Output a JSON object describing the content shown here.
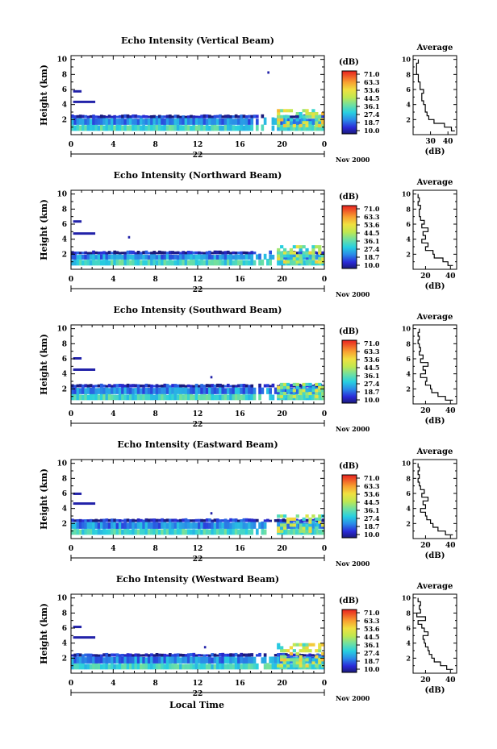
{
  "figure": {
    "bottom_label": "Local Time",
    "colors": {
      "axis": "#000000",
      "background": "#ffffff"
    }
  },
  "chart_data": [
    {
      "type": "heatmap",
      "title": "Echo Intensity (Vertical Beam)",
      "ylabel": "Height (km)",
      "xlim": [
        0,
        24
      ],
      "ylim": [
        0,
        10.5
      ],
      "xticks": [
        "0",
        "4",
        "8",
        "12",
        "16",
        "20",
        "0"
      ],
      "yticks": [
        "2",
        "4",
        "6",
        "8",
        "10"
      ],
      "day_label": "22",
      "month_label": "Nov 2000",
      "colorbar": {
        "unit": "(dB)",
        "ticks": [
          "71.0",
          "63.3",
          "53.6",
          "44.5",
          "36.1",
          "27.4",
          "18.7",
          "10.0"
        ]
      },
      "layers": [
        {
          "x0": 0,
          "x1": 24,
          "y0": 0.5,
          "y1": 1.3,
          "db": 28
        },
        {
          "x0": 0,
          "x1": 24,
          "y0": 1.3,
          "y1": 2.2,
          "db": 20
        },
        {
          "x0": 0,
          "x1": 24,
          "y0": 2.2,
          "y1": 2.6,
          "db": 13
        }
      ],
      "features": [
        {
          "x0": 0.2,
          "x1": 1.0,
          "y": 5.7,
          "db": 12
        },
        {
          "x0": 0.2,
          "x1": 2.3,
          "y": 4.3,
          "db": 12
        },
        {
          "x0": 18.6,
          "x1": 18.8,
          "y": 8.2,
          "db": 12
        },
        {
          "x0": 19.5,
          "x1": 24,
          "y0": 1.0,
          "y1": 3.2,
          "db": 40
        }
      ],
      "profile": {
        "title": "Average",
        "xlabel": "(dB)",
        "xlim": [
          20,
          45
        ],
        "xticks": [
          30,
          40
        ],
        "heights": [
          0.5,
          1.0,
          1.5,
          2.0,
          2.5,
          3.0,
          3.5,
          4.0,
          4.5,
          5.0,
          5.5,
          6.0,
          6.5,
          7.0,
          7.5,
          8.0,
          8.5,
          9.0,
          9.5,
          10.0
        ],
        "values": [
          44,
          42,
          38,
          32,
          29,
          28,
          27,
          27,
          26,
          25,
          25,
          26,
          24,
          24,
          23,
          23,
          22,
          22,
          22,
          23
        ]
      }
    },
    {
      "type": "heatmap",
      "title": "Echo Intensity (Northward Beam)",
      "ylabel": "Height (km)",
      "xlim": [
        0,
        24
      ],
      "ylim": [
        0,
        10.5
      ],
      "xticks": [
        "0",
        "4",
        "8",
        "12",
        "16",
        "20",
        "0"
      ],
      "yticks": [
        "2",
        "4",
        "6",
        "8",
        "10"
      ],
      "day_label": "22",
      "month_label": "Nov 2000",
      "colorbar": {
        "unit": "(dB)",
        "ticks": [
          "71.0",
          "63.3",
          "53.6",
          "44.5",
          "36.1",
          "27.4",
          "18.7",
          "10.0"
        ]
      },
      "layers": [
        {
          "x0": 0,
          "x1": 24,
          "y0": 0.5,
          "y1": 1.3,
          "db": 28
        },
        {
          "x0": 0,
          "x1": 24,
          "y0": 1.3,
          "y1": 2.0,
          "db": 20
        },
        {
          "x0": 0,
          "x1": 24,
          "y0": 2.0,
          "y1": 2.4,
          "db": 13
        }
      ],
      "features": [
        {
          "x0": 0.2,
          "x1": 1.0,
          "y": 6.3,
          "db": 12
        },
        {
          "x0": 0.2,
          "x1": 2.3,
          "y": 4.7,
          "db": 12
        },
        {
          "x0": 5.4,
          "x1": 5.6,
          "y": 4.2,
          "db": 12
        },
        {
          "x0": 19.5,
          "x1": 24,
          "y0": 0.8,
          "y1": 2.9,
          "db": 38
        }
      ],
      "profile": {
        "title": "Average",
        "xlabel": "(dB)",
        "xlim": [
          10,
          45
        ],
        "xticks": [
          20,
          40
        ],
        "heights": [
          0.5,
          1.0,
          1.5,
          2.0,
          2.5,
          3.0,
          3.5,
          4.0,
          4.5,
          5.0,
          5.5,
          6.0,
          6.5,
          7.0,
          7.5,
          8.0,
          8.5,
          9.0,
          9.5,
          10.0
        ],
        "values": [
          42,
          38,
          34,
          27,
          26,
          20,
          22,
          17,
          20,
          18,
          22,
          17,
          19,
          16,
          15,
          15,
          16,
          14,
          15,
          14
        ]
      }
    },
    {
      "type": "heatmap",
      "title": "Echo Intensity (Southward Beam)",
      "ylabel": "Height (km)",
      "xlim": [
        0,
        24
      ],
      "ylim": [
        0,
        10.5
      ],
      "xticks": [
        "0",
        "4",
        "8",
        "12",
        "16",
        "20",
        "0"
      ],
      "yticks": [
        "2",
        "4",
        "6",
        "8",
        "10"
      ],
      "day_label": "22",
      "month_label": "Nov 2000",
      "colorbar": {
        "unit": "(dB)",
        "ticks": [
          "71.0",
          "63.3",
          "53.6",
          "44.5",
          "36.1",
          "27.4",
          "18.7",
          "10.0"
        ]
      },
      "layers": [
        {
          "x0": 0,
          "x1": 24,
          "y0": 0.5,
          "y1": 1.3,
          "db": 28
        },
        {
          "x0": 0,
          "x1": 24,
          "y0": 1.3,
          "y1": 2.2,
          "db": 20
        },
        {
          "x0": 0,
          "x1": 24,
          "y0": 2.2,
          "y1": 2.6,
          "db": 13
        }
      ],
      "features": [
        {
          "x0": 0.2,
          "x1": 1.0,
          "y": 6.0,
          "db": 12
        },
        {
          "x0": 0.2,
          "x1": 2.3,
          "y": 4.5,
          "db": 12
        },
        {
          "x0": 13.2,
          "x1": 13.4,
          "y": 3.5,
          "db": 12
        },
        {
          "x0": 19.5,
          "x1": 24,
          "y0": 0.8,
          "y1": 2.8,
          "db": 36
        }
      ],
      "profile": {
        "title": "Average",
        "xlabel": "(dB)",
        "xlim": [
          10,
          45
        ],
        "xticks": [
          20,
          40
        ],
        "heights": [
          0.5,
          1.0,
          1.5,
          2.0,
          2.5,
          3.0,
          3.5,
          4.0,
          4.5,
          5.0,
          5.5,
          6.0,
          6.5,
          7.0,
          7.5,
          8.0,
          8.5,
          9.0,
          9.5,
          10.0
        ],
        "values": [
          42,
          36,
          30,
          25,
          24,
          20,
          21,
          16,
          20,
          18,
          22,
          16,
          18,
          15,
          16,
          15,
          14,
          15,
          14,
          15
        ]
      }
    },
    {
      "type": "heatmap",
      "title": "Echo Intensity (Eastward Beam)",
      "ylabel": "Height (km)",
      "xlim": [
        0,
        24
      ],
      "ylim": [
        0,
        10.5
      ],
      "xticks": [
        "0",
        "4",
        "8",
        "12",
        "16",
        "20",
        "0"
      ],
      "yticks": [
        "2",
        "4",
        "6",
        "8",
        "10"
      ],
      "day_label": "22",
      "month_label": "Nov 2000",
      "colorbar": {
        "unit": "(dB)",
        "ticks": [
          "71.0",
          "63.3",
          "53.6",
          "44.5",
          "36.1",
          "27.4",
          "18.7",
          "10.0"
        ]
      },
      "layers": [
        {
          "x0": 0,
          "x1": 24,
          "y0": 0.5,
          "y1": 1.3,
          "db": 28
        },
        {
          "x0": 0,
          "x1": 24,
          "y0": 1.3,
          "y1": 2.2,
          "db": 20
        },
        {
          "x0": 0,
          "x1": 24,
          "y0": 2.2,
          "y1": 2.6,
          "db": 13
        }
      ],
      "features": [
        {
          "x0": 0.2,
          "x1": 1.0,
          "y": 5.9,
          "db": 12
        },
        {
          "x0": 0.2,
          "x1": 2.3,
          "y": 4.6,
          "db": 12
        },
        {
          "x0": 13.2,
          "x1": 13.4,
          "y": 3.3,
          "db": 12
        },
        {
          "x0": 19.5,
          "x1": 24,
          "y0": 0.8,
          "y1": 3.0,
          "db": 38
        }
      ],
      "profile": {
        "title": "Average",
        "xlabel": "(dB)",
        "xlim": [
          10,
          45
        ],
        "xticks": [
          20,
          40
        ],
        "heights": [
          0.5,
          1.0,
          1.5,
          2.0,
          2.5,
          3.0,
          3.5,
          4.0,
          4.5,
          5.0,
          5.5,
          6.0,
          6.5,
          7.0,
          7.5,
          8.0,
          8.5,
          9.0,
          9.5,
          10.0
        ],
        "values": [
          42,
          36,
          30,
          26,
          24,
          21,
          20,
          16,
          20,
          18,
          22,
          17,
          19,
          16,
          15,
          14,
          15,
          14,
          15,
          14
        ]
      }
    },
    {
      "type": "heatmap",
      "title": "Echo Intensity (Westward Beam)",
      "ylabel": "Height (km)",
      "xlim": [
        0,
        24
      ],
      "ylim": [
        0,
        10.5
      ],
      "xticks": [
        "0",
        "4",
        "8",
        "12",
        "16",
        "20",
        "0"
      ],
      "yticks": [
        "2",
        "4",
        "6",
        "8",
        "10"
      ],
      "day_label": "22",
      "month_label": "Nov 2000",
      "colorbar": {
        "unit": "(dB)",
        "ticks": [
          "71.0",
          "63.3",
          "53.6",
          "44.5",
          "36.1",
          "27.4",
          "18.7",
          "10.0"
        ]
      },
      "layers": [
        {
          "x0": 0,
          "x1": 24,
          "y0": 0.5,
          "y1": 1.3,
          "db": 28
        },
        {
          "x0": 0,
          "x1": 24,
          "y0": 1.3,
          "y1": 2.2,
          "db": 20
        },
        {
          "x0": 0,
          "x1": 24,
          "y0": 2.2,
          "y1": 2.6,
          "db": 13
        }
      ],
      "features": [
        {
          "x0": 0.2,
          "x1": 1.0,
          "y": 6.1,
          "db": 12
        },
        {
          "x0": 0.2,
          "x1": 2.3,
          "y": 4.7,
          "db": 12
        },
        {
          "x0": 12.6,
          "x1": 12.8,
          "y": 3.4,
          "db": 12
        },
        {
          "x0": 19.5,
          "x1": 24,
          "y0": 0.8,
          "y1": 3.8,
          "db": 40
        }
      ],
      "profile": {
        "title": "Average",
        "xlabel": "(dB)",
        "xlim": [
          10,
          45
        ],
        "xticks": [
          20,
          40
        ],
        "heights": [
          0.5,
          1.0,
          1.5,
          2.0,
          2.5,
          3.0,
          3.5,
          4.0,
          4.5,
          5.0,
          5.5,
          6.0,
          6.5,
          7.0,
          7.5,
          8.0,
          8.5,
          9.0,
          9.5,
          10.0
        ],
        "values": [
          42,
          37,
          32,
          27,
          25,
          23,
          22,
          20,
          19,
          18,
          22,
          19,
          17,
          14,
          20,
          13,
          16,
          15,
          16,
          14
        ]
      }
    }
  ]
}
